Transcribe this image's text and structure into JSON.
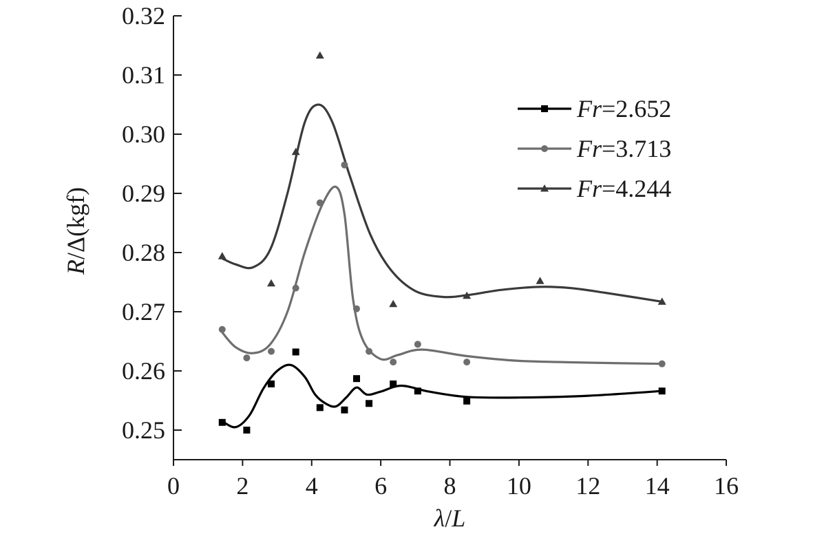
{
  "chart_data": {
    "type": "line",
    "xlabel": {
      "italic1": "λ",
      "sep": "/",
      "italic2": "L"
    },
    "ylabel": {
      "italic": "R",
      "rest": "/Δ(kgf)"
    },
    "xlim": [
      0,
      16
    ],
    "ylim": [
      0.245,
      0.32
    ],
    "xticks": [
      0,
      2,
      4,
      6,
      8,
      10,
      12,
      14,
      16
    ],
    "yticks": [
      0.25,
      0.26,
      0.27,
      0.28,
      0.29,
      0.3,
      0.31,
      0.32
    ],
    "xtick_labels": [
      "0",
      "2",
      "4",
      "6",
      "8",
      "10",
      "12",
      "14",
      "16"
    ],
    "ytick_labels": [
      "0.25",
      "0.26",
      "0.27",
      "0.28",
      "0.29",
      "0.30",
      "0.31",
      "0.32"
    ],
    "grid": false,
    "legend_position": "top-right",
    "series": [
      {
        "name": "Fr=2.652",
        "name_italic": "Fr",
        "name_value": "=2.652",
        "marker": "square",
        "color": "#000000",
        "x": [
          1.41,
          2.12,
          2.83,
          3.54,
          4.24,
          4.95,
          5.3,
          5.66,
          6.36,
          7.07,
          8.49,
          14.14
        ],
        "y": [
          0.2513,
          0.25,
          0.2578,
          0.2632,
          0.2538,
          0.2534,
          0.2587,
          0.2545,
          0.2578,
          0.2566,
          0.2549,
          0.2566
        ],
        "curve_x": [
          1.41,
          1.8,
          2.2,
          2.6,
          3.0,
          3.4,
          3.8,
          4.1,
          4.4,
          4.7,
          5.0,
          5.3,
          5.6,
          6.0,
          6.6,
          7.4,
          8.5,
          10.0,
          12.0,
          14.14
        ],
        "curve_y": [
          0.2515,
          0.2505,
          0.2525,
          0.257,
          0.26,
          0.261,
          0.259,
          0.256,
          0.2545,
          0.254,
          0.2555,
          0.2572,
          0.256,
          0.2565,
          0.2575,
          0.2565,
          0.2556,
          0.2555,
          0.2558,
          0.2566
        ]
      },
      {
        "name": "Fr=3.713",
        "name_italic": "Fr",
        "name_value": "=3.713",
        "marker": "circle",
        "color": "#6e6e6e",
        "x": [
          1.41,
          2.12,
          2.83,
          3.54,
          4.24,
          4.95,
          5.3,
          5.66,
          6.36,
          7.07,
          8.49,
          14.14
        ],
        "y": [
          0.267,
          0.2622,
          0.2633,
          0.274,
          0.2884,
          0.2948,
          0.2705,
          0.2633,
          0.2615,
          0.2645,
          0.2615,
          0.2612
        ],
        "curve_x": [
          1.41,
          1.8,
          2.3,
          2.8,
          3.3,
          3.8,
          4.3,
          4.7,
          4.95,
          5.2,
          5.5,
          6.0,
          6.5,
          7.2,
          8.5,
          10.0,
          12.0,
          14.14
        ],
        "curve_y": [
          0.2665,
          0.264,
          0.263,
          0.2645,
          0.27,
          0.28,
          0.288,
          0.2911,
          0.2865,
          0.272,
          0.265,
          0.262,
          0.2627,
          0.2636,
          0.2625,
          0.2617,
          0.2614,
          0.2612
        ]
      },
      {
        "name": "Fr=4.244",
        "name_italic": "Fr",
        "name_value": "=4.244",
        "marker": "triangle",
        "color": "#3a3a3a",
        "x": [
          1.41,
          2.83,
          3.54,
          4.24,
          6.36,
          8.49,
          10.61,
          14.14
        ],
        "y": [
          0.2794,
          0.2748,
          0.297,
          0.3133,
          0.2713,
          0.2727,
          0.2752,
          0.2717
        ],
        "curve_x": [
          1.41,
          1.8,
          2.3,
          2.8,
          3.3,
          3.8,
          4.2,
          4.6,
          5.1,
          5.7,
          6.3,
          7.0,
          7.8,
          8.5,
          9.5,
          10.6,
          11.5,
          12.5,
          14.14
        ],
        "curve_y": [
          0.279,
          0.278,
          0.2775,
          0.2805,
          0.29,
          0.302,
          0.305,
          0.302,
          0.293,
          0.283,
          0.277,
          0.2735,
          0.2725,
          0.2728,
          0.2737,
          0.2742,
          0.274,
          0.2732,
          0.2717
        ]
      }
    ]
  }
}
